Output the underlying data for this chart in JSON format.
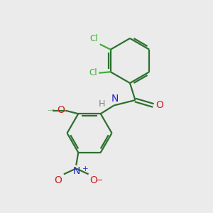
{
  "bg_color": "#ebebeb",
  "bond_color": "#2d7030",
  "cl_color": "#3cb034",
  "n_color": "#2222cc",
  "o_color": "#cc2222",
  "h_color": "#808080",
  "figsize": [
    3.0,
    3.0
  ],
  "dpi": 100,
  "xlim": [
    0,
    10
  ],
  "ylim": [
    0,
    10
  ]
}
